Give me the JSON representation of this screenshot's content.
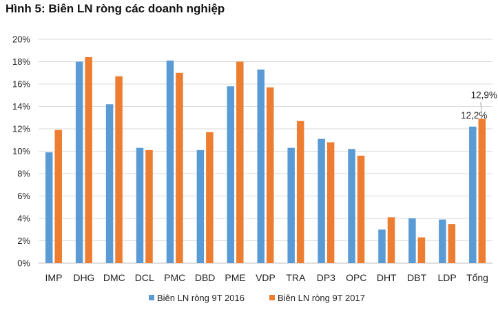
{
  "chart_data": {
    "type": "bar",
    "title": "Hình 5: Biên LN ròng các doanh nghiệp",
    "xlabel": "",
    "ylabel": "",
    "ylim": [
      0,
      20
    ],
    "y_ticks": [
      "0%",
      "2%",
      "4%",
      "6%",
      "8%",
      "10%",
      "12%",
      "14%",
      "16%",
      "18%",
      "20%"
    ],
    "y_tick_values": [
      0,
      2,
      4,
      6,
      8,
      10,
      12,
      14,
      16,
      18,
      20
    ],
    "grid": true,
    "legend_position": "bottom",
    "categories": [
      "IMP",
      "DHG",
      "DMC",
      "DCL",
      "PMC",
      "DBD",
      "PME",
      "VDP",
      "TRA",
      "DP3",
      "OPC",
      "DHT",
      "DBT",
      "LDP",
      "Tổng"
    ],
    "series": [
      {
        "name": "Biên LN ròng 9T 2016",
        "color": "#5b9bd5",
        "values": [
          9.9,
          18.0,
          14.2,
          10.3,
          18.1,
          10.1,
          15.8,
          17.3,
          10.3,
          11.1,
          10.2,
          3.0,
          4.0,
          3.9,
          12.2
        ]
      },
      {
        "name": "Biên LN ròng 9T 2017",
        "color": "#ed7d31",
        "values": [
          11.9,
          18.4,
          16.7,
          10.1,
          17.0,
          11.7,
          18.0,
          15.7,
          12.7,
          10.8,
          9.6,
          4.1,
          2.3,
          3.5,
          12.9
        ]
      }
    ],
    "annotations": [
      {
        "text": "12,2%",
        "category": "Tổng",
        "series": 0
      },
      {
        "text": "12,9%",
        "category": "Tổng",
        "series": 1
      }
    ]
  }
}
